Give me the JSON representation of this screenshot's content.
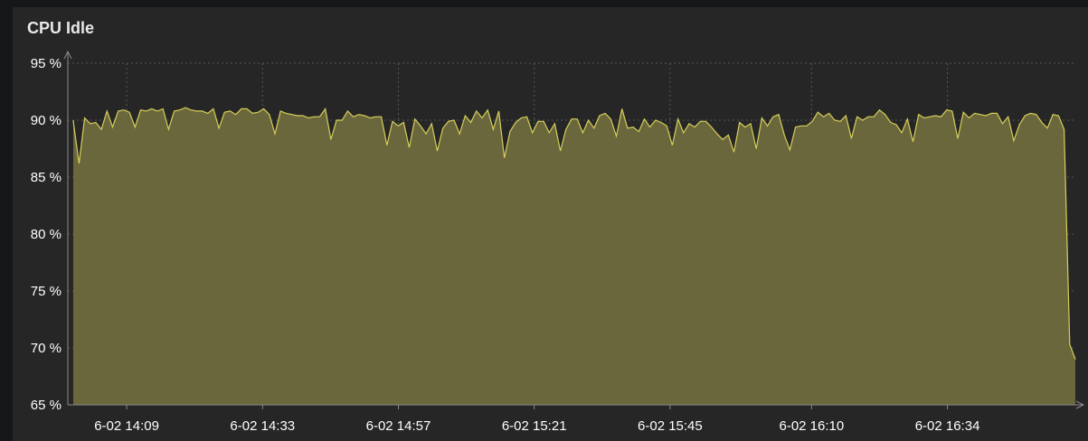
{
  "panel": {
    "title": "CPU Idle"
  },
  "colors": {
    "panel_bg": "#262626",
    "page_bg": "#161719",
    "series_line": "#d6cf5a",
    "series_fill": "#6b673c",
    "grid": "#555555",
    "tick_text": "#ffffff"
  },
  "chart_data": {
    "type": "area",
    "title": "CPU Idle",
    "xlabel": "",
    "ylabel": "",
    "grid": true,
    "legend": "none",
    "ylim": [
      65,
      95
    ],
    "y_ticks": [
      "95 %",
      "90 %",
      "85 %",
      "80 %",
      "75 %",
      "70 %",
      "65 %"
    ],
    "x_ticks": [
      "6-02 14:09",
      "6-02 14:33",
      "6-02 14:57",
      "6-02 15:21",
      "6-02 15:45",
      "6-02 16:10",
      "6-02 16:34"
    ],
    "x_tick_minutes": [
      0,
      24,
      48,
      72,
      96,
      121,
      145
    ],
    "x_range_minutes": [
      -10.4,
      167.6
    ],
    "series": [
      {
        "values": [
          90.0,
          89.8,
          86.2,
          90.2,
          89.7,
          89.8,
          89.2,
          90.8,
          89.4,
          90.8,
          90.9,
          90.7,
          89.4,
          90.9,
          90.8,
          91.0,
          90.8,
          91.0,
          89.2,
          90.8,
          90.9,
          91.1,
          90.9,
          90.8,
          90.8,
          90.6,
          91.0,
          89.3,
          90.7,
          90.8,
          90.5,
          91.0,
          91.0,
          90.6,
          90.7,
          91.0,
          90.5,
          88.8,
          90.8,
          90.6,
          90.5,
          90.4,
          90.4,
          90.2,
          90.3,
          90.3,
          91.0,
          88.3,
          90.0,
          90.0,
          90.8,
          90.3,
          90.5,
          90.4,
          90.2,
          90.3,
          90.3,
          87.8,
          89.9,
          89.5,
          89.8,
          87.6,
          90.1,
          89.5,
          88.8,
          89.7,
          87.3,
          89.3,
          89.9,
          90.0,
          88.8,
          90.4,
          89.8,
          90.8,
          90.2,
          90.9,
          89.2,
          90.8,
          86.7,
          89.0,
          89.8,
          90.2,
          90.3,
          88.9,
          89.9,
          89.9,
          88.9,
          89.7,
          87.3,
          89.2,
          90.1,
          90.1,
          88.9,
          90.0,
          89.3,
          90.4,
          90.6,
          90.1,
          88.6,
          91.0,
          89.3,
          89.4,
          89.0,
          90.1,
          89.4,
          90.0,
          89.8,
          89.5,
          87.8,
          90.1,
          88.9,
          89.7,
          89.4,
          89.9,
          89.9,
          89.4,
          88.8,
          88.3,
          88.7,
          87.2,
          89.8,
          89.4,
          89.7,
          87.5,
          90.2,
          89.5,
          90.3,
          90.5,
          88.7,
          87.4,
          89.4,
          89.5,
          89.5,
          89.9,
          90.7,
          90.3,
          90.6,
          90.0,
          89.9,
          90.4,
          88.4,
          90.3,
          90.0,
          90.3,
          90.3,
          90.9,
          90.5,
          89.8,
          89.6,
          88.9,
          90.1,
          88.1,
          90.5,
          90.2,
          90.3,
          90.4,
          90.3,
          90.9,
          90.8,
          88.4,
          90.7,
          90.2,
          90.6,
          90.5,
          90.4,
          90.6,
          90.6,
          89.7,
          90.3,
          88.2,
          89.6,
          90.4,
          90.6,
          90.5,
          89.8,
          89.3,
          90.5,
          90.4,
          89.2,
          70.3,
          69.0
        ]
      }
    ]
  }
}
